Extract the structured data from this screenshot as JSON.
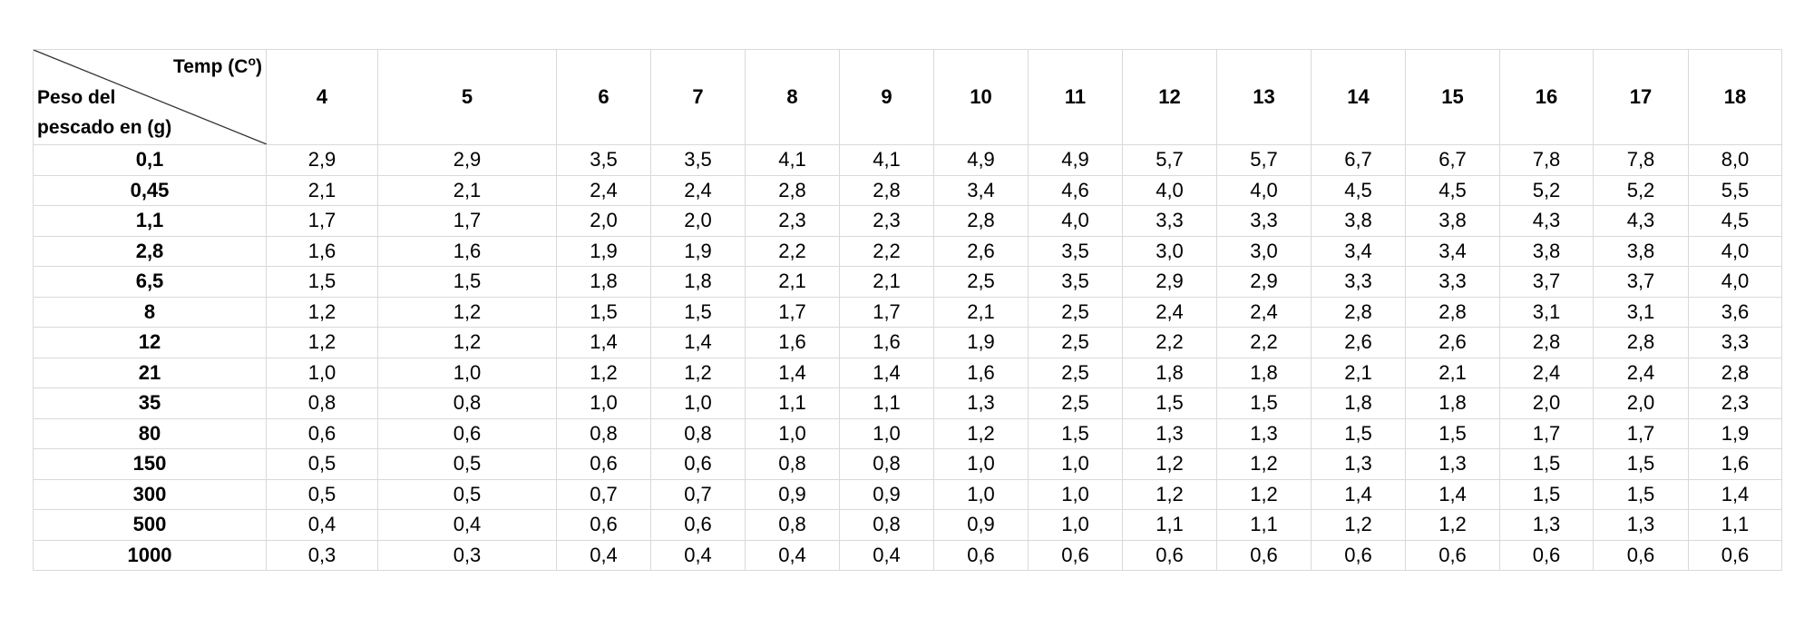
{
  "table": {
    "corner": {
      "top": "Temp (C",
      "top_sup": "o",
      "top_end": ")",
      "left": [
        "Peso del",
        "pescado en (g)"
      ]
    },
    "columns": [
      "4",
      "5",
      "6",
      "7",
      "8",
      "9",
      "10",
      "11",
      "12",
      "13",
      "14",
      "15",
      "16",
      "17",
      "18"
    ],
    "rows": [
      [
        "0,1",
        "2,9",
        "2,9",
        "3,5",
        "3,5",
        "4,1",
        "4,1",
        "4,9",
        "4,9",
        "5,7",
        "5,7",
        "6,7",
        "6,7",
        "7,8",
        "7,8",
        "8,0"
      ],
      [
        "0,45",
        "2,1",
        "2,1",
        "2,4",
        "2,4",
        "2,8",
        "2,8",
        "3,4",
        "4,6",
        "4,0",
        "4,0",
        "4,5",
        "4,5",
        "5,2",
        "5,2",
        "5,5"
      ],
      [
        "1,1",
        "1,7",
        "1,7",
        "2,0",
        "2,0",
        "2,3",
        "2,3",
        "2,8",
        "4,0",
        "3,3",
        "3,3",
        "3,8",
        "3,8",
        "4,3",
        "4,3",
        "4,5"
      ],
      [
        "2,8",
        "1,6",
        "1,6",
        "1,9",
        "1,9",
        "2,2",
        "2,2",
        "2,6",
        "3,5",
        "3,0",
        "3,0",
        "3,4",
        "3,4",
        "3,8",
        "3,8",
        "4,0"
      ],
      [
        "6,5",
        "1,5",
        "1,5",
        "1,8",
        "1,8",
        "2,1",
        "2,1",
        "2,5",
        "3,5",
        "2,9",
        "2,9",
        "3,3",
        "3,3",
        "3,7",
        "3,7",
        "4,0"
      ],
      [
        "8",
        "1,2",
        "1,2",
        "1,5",
        "1,5",
        "1,7",
        "1,7",
        "2,1",
        "2,5",
        "2,4",
        "2,4",
        "2,8",
        "2,8",
        "3,1",
        "3,1",
        "3,6"
      ],
      [
        "12",
        "1,2",
        "1,2",
        "1,4",
        "1,4",
        "1,6",
        "1,6",
        "1,9",
        "2,5",
        "2,2",
        "2,2",
        "2,6",
        "2,6",
        "2,8",
        "2,8",
        "3,3"
      ],
      [
        "21",
        "1,0",
        "1,0",
        "1,2",
        "1,2",
        "1,4",
        "1,4",
        "1,6",
        "2,5",
        "1,8",
        "1,8",
        "2,1",
        "2,1",
        "2,4",
        "2,4",
        "2,8"
      ],
      [
        "35",
        "0,8",
        "0,8",
        "1,0",
        "1,0",
        "1,1",
        "1,1",
        "1,3",
        "2,5",
        "1,5",
        "1,5",
        "1,8",
        "1,8",
        "2,0",
        "2,0",
        "2,3"
      ],
      [
        "80",
        "0,6",
        "0,6",
        "0,8",
        "0,8",
        "1,0",
        "1,0",
        "1,2",
        "1,5",
        "1,3",
        "1,3",
        "1,5",
        "1,5",
        "1,7",
        "1,7",
        "1,9"
      ],
      [
        "150",
        "0,5",
        "0,5",
        "0,6",
        "0,6",
        "0,8",
        "0,8",
        "1,0",
        "1,0",
        "1,2",
        "1,2",
        "1,3",
        "1,3",
        "1,5",
        "1,5",
        "1,6"
      ],
      [
        "300",
        "0,5",
        "0,5",
        "0,7",
        "0,7",
        "0,9",
        "0,9",
        "1,0",
        "1,0",
        "1,2",
        "1,2",
        "1,4",
        "1,4",
        "1,5",
        "1,5",
        "1,4"
      ],
      [
        "500",
        "0,4",
        "0,4",
        "0,6",
        "0,6",
        "0,8",
        "0,8",
        "0,9",
        "1,0",
        "1,1",
        "1,1",
        "1,2",
        "1,2",
        "1,3",
        "1,3",
        "1,1"
      ],
      [
        "1000",
        "0,3",
        "0,3",
        "0,4",
        "0,4",
        "0,4",
        "0,4",
        "0,6",
        "0,6",
        "0,6",
        "0,6",
        "0,6",
        "0,6",
        "0,6",
        "0,6",
        "0,6"
      ]
    ]
  }
}
